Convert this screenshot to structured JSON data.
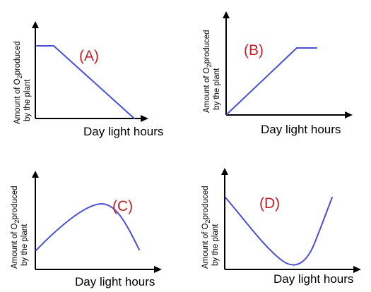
{
  "colors": {
    "curve": "#4a4fd6",
    "panel_label": "#c0202a",
    "axis": "#000000"
  },
  "panels": [
    {
      "id": "A",
      "label": "(A)",
      "xlabel": "Day light hours",
      "ylabel_line1_pre": "Amount of O",
      "ylabel_sub": "2",
      "ylabel_line1_post": "produced",
      "ylabel_line2": "by the plant",
      "shape": "plateau-then-linear-decrease"
    },
    {
      "id": "B",
      "label": "(B)",
      "xlabel": "Day light hours",
      "ylabel_line1_pre": "Amount of O",
      "ylabel_sub": "2",
      "ylabel_line1_post": "produced",
      "ylabel_line2": "by the plant",
      "shape": "linear-increase-then-plateau"
    },
    {
      "id": "C",
      "label": "(C)",
      "xlabel": "Day light hours",
      "ylabel_line1_pre": "Amount of O",
      "ylabel_sub": "2",
      "ylabel_line1_post": "produced",
      "ylabel_line2": "by the plant",
      "shape": "rise-to-peak-then-fall"
    },
    {
      "id": "D",
      "label": "(D)",
      "xlabel": "Day light hours",
      "ylabel_line1_pre": "Amount of O",
      "ylabel_sub": "2",
      "ylabel_line1_post": "produced",
      "ylabel_line2": "by the plant",
      "shape": "fall-to-minimum-then-rise"
    }
  ]
}
